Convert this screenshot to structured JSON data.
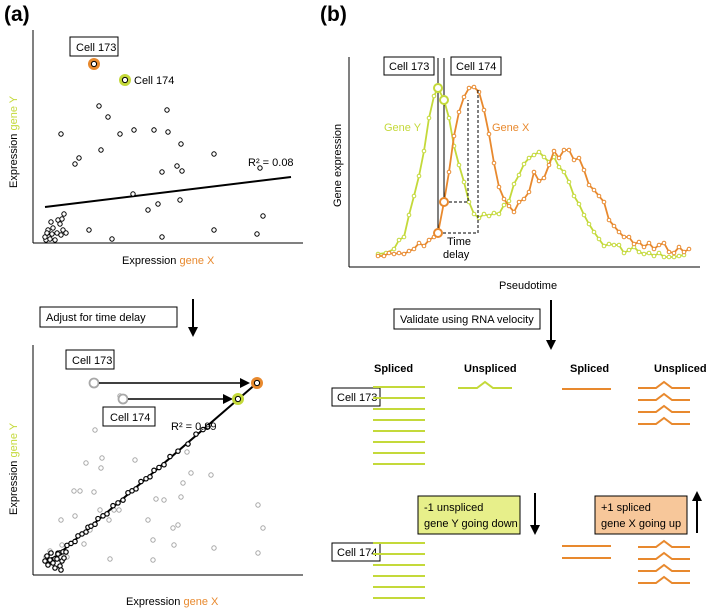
{
  "panel_a": {
    "label": "(a)",
    "top_plot": {
      "xlabel_prefix": "Expression ",
      "xlabel_gene": "gene X",
      "ylabel_prefix": "Expression ",
      "ylabel_gene": "gene Y",
      "r2": "R² = 0.08",
      "cell_173": "Cell 173",
      "cell_174": "Cell 174"
    },
    "step_box": "Adjust for time delay",
    "bottom_plot": {
      "xlabel_prefix": "Expression ",
      "xlabel_gene": "gene X",
      "ylabel_prefix": "Expression ",
      "ylabel_gene": "gene Y",
      "r2": "R² = 0.99",
      "cell_173": "Cell 173",
      "cell_174": "Cell 174"
    }
  },
  "panel_b": {
    "label": "(b)",
    "timecourse": {
      "ylabel": "Gene expression",
      "xlabel": "Pseudotime",
      "gene_y": "Gene Y",
      "gene_x": "Gene X",
      "cell_173": "Cell 173",
      "cell_174": "Cell 174",
      "delay_line1": "Time",
      "delay_line2": "delay"
    },
    "step_box": "Validate using RNA velocity",
    "velocity": {
      "col_spliced_y": "Spliced",
      "col_unspliced_y": "Unspliced",
      "col_spliced_x": "Spliced",
      "col_unspliced_x": "Unspliced",
      "cell_173": "Cell 173",
      "cell_174": "Cell 174",
      "note_y_line1": "-1 unspliced",
      "note_y_line2": "gene Y going down",
      "note_x_line1": "+1 spliced",
      "note_x_line2": "gene X going up"
    }
  },
  "colors": {
    "gene_x": "#e8892e",
    "gene_y": "#c4d93a",
    "box_y_fill": "#e7ef8a",
    "box_x_fill": "#f7c79a",
    "gray": "#a8a8a8"
  }
}
